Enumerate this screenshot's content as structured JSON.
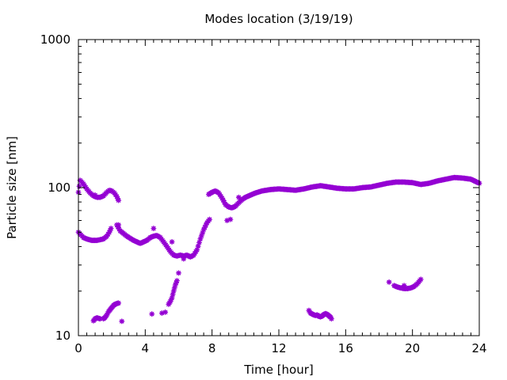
{
  "chart_data": {
    "type": "scatter",
    "title": "Modes location (3/19/19)",
    "xlabel": "Time [hour]",
    "ylabel": "Particle size [nm]",
    "xlim": [
      0,
      24
    ],
    "ylim": [
      10,
      1000
    ],
    "yscale": "log",
    "grid": false,
    "legend": "none",
    "x_ticks": [
      0,
      4,
      8,
      12,
      16,
      20,
      24
    ],
    "x_tick_labels": [
      "0",
      "4",
      "8",
      "12",
      "16",
      "20",
      "24"
    ],
    "y_ticks": [
      10,
      100,
      1000
    ],
    "y_tick_labels": [
      "10",
      "100",
      "1000"
    ],
    "marker_color": "#9400d3",
    "anchors": [
      [
        [
          0.0,
          93
        ],
        [
          0.1,
          112
        ],
        [
          0.3,
          106
        ],
        [
          0.5,
          98
        ],
        [
          0.7,
          92
        ],
        [
          0.9,
          88
        ],
        [
          1.1,
          86
        ],
        [
          1.3,
          86
        ],
        [
          1.5,
          88
        ],
        [
          1.7,
          93
        ],
        [
          1.85,
          96
        ],
        [
          2.0,
          95
        ],
        [
          2.15,
          92
        ],
        [
          2.3,
          87
        ],
        [
          2.4,
          82
        ]
      ],
      [
        [
          0.0,
          50
        ],
        [
          0.15,
          48
        ],
        [
          0.3,
          46
        ],
        [
          0.5,
          45
        ],
        [
          0.8,
          44
        ],
        [
          1.1,
          44
        ],
        [
          1.3,
          44.5
        ],
        [
          1.5,
          45
        ],
        [
          1.7,
          47
        ],
        [
          1.85,
          50
        ],
        [
          1.95,
          53
        ]
      ],
      [
        [
          2.3,
          56
        ],
        [
          2.5,
          51
        ],
        [
          2.7,
          49
        ],
        [
          2.9,
          47
        ],
        [
          3.1,
          45.5
        ],
        [
          3.3,
          44
        ],
        [
          3.5,
          43
        ],
        [
          3.7,
          42
        ],
        [
          3.9,
          43
        ],
        [
          4.1,
          44
        ],
        [
          4.3,
          46
        ],
        [
          4.5,
          47
        ],
        [
          4.7,
          47.5
        ],
        [
          4.9,
          46
        ],
        [
          5.1,
          43
        ],
        [
          5.3,
          40
        ],
        [
          5.5,
          37
        ],
        [
          5.7,
          35
        ],
        [
          5.9,
          34.5
        ],
        [
          6.1,
          35
        ],
        [
          6.3,
          34.5
        ],
        [
          6.5,
          35
        ],
        [
          6.7,
          34
        ],
        [
          6.9,
          35
        ],
        [
          7.1,
          38
        ],
        [
          7.3,
          45
        ],
        [
          7.5,
          52
        ],
        [
          7.7,
          58
        ],
        [
          7.85,
          61
        ]
      ],
      [
        [
          7.8,
          90
        ],
        [
          8.0,
          93
        ],
        [
          8.2,
          95
        ],
        [
          8.4,
          92
        ],
        [
          8.6,
          85
        ],
        [
          8.8,
          77
        ],
        [
          9.0,
          74
        ],
        [
          9.2,
          73
        ],
        [
          9.4,
          75
        ],
        [
          9.6,
          79
        ],
        [
          9.8,
          83
        ],
        [
          10.0,
          86
        ],
        [
          10.3,
          89
        ],
        [
          10.6,
          92
        ],
        [
          11.0,
          95
        ],
        [
          11.5,
          97
        ],
        [
          12.0,
          98
        ],
        [
          12.5,
          97
        ],
        [
          13.0,
          96
        ],
        [
          13.5,
          98
        ],
        [
          14.0,
          101
        ],
        [
          14.5,
          103
        ],
        [
          15.0,
          101
        ],
        [
          15.5,
          99
        ],
        [
          16.0,
          98
        ],
        [
          16.5,
          98
        ],
        [
          17.0,
          100
        ],
        [
          17.5,
          101
        ],
        [
          18.0,
          104
        ],
        [
          18.5,
          107
        ],
        [
          19.0,
          109
        ],
        [
          19.5,
          109
        ],
        [
          20.0,
          108
        ],
        [
          20.5,
          105
        ],
        [
          21.0,
          107
        ],
        [
          21.5,
          111
        ],
        [
          22.0,
          114
        ],
        [
          22.5,
          117
        ],
        [
          23.0,
          116
        ],
        [
          23.5,
          114
        ],
        [
          24.0,
          107
        ]
      ],
      [
        [
          0.9,
          12.6
        ],
        [
          1.0,
          13.0
        ],
        [
          1.1,
          13.2
        ],
        [
          1.2,
          13.1
        ],
        [
          1.3,
          13.0
        ]
      ],
      [
        [
          1.5,
          13.0
        ],
        [
          1.6,
          13.3
        ],
        [
          1.7,
          13.8
        ],
        [
          1.8,
          14.5
        ],
        [
          1.9,
          15.0
        ],
        [
          2.0,
          15.5
        ],
        [
          2.1,
          16.0
        ],
        [
          2.2,
          16.3
        ],
        [
          2.3,
          16.5
        ],
        [
          2.4,
          16.6
        ]
      ],
      [
        [
          5.4,
          16.3
        ],
        [
          5.5,
          17.0
        ],
        [
          5.6,
          18.0
        ],
        [
          5.7,
          20.0
        ],
        [
          5.8,
          22.0
        ],
        [
          5.9,
          23.5
        ]
      ],
      [
        [
          13.8,
          14.8
        ],
        [
          13.9,
          14.2
        ],
        [
          14.0,
          14.0
        ],
        [
          14.1,
          13.8
        ],
        [
          14.2,
          13.7
        ],
        [
          14.3,
          13.8
        ],
        [
          14.4,
          13.5
        ],
        [
          14.5,
          13.4
        ],
        [
          14.6,
          13.6
        ],
        [
          14.7,
          13.9
        ],
        [
          14.8,
          14.1
        ],
        [
          14.9,
          13.9
        ],
        [
          15.0,
          13.6
        ],
        [
          15.1,
          13.3
        ],
        [
          15.15,
          13.0
        ]
      ],
      [
        [
          18.9,
          21.8
        ],
        [
          19.1,
          21.3
        ],
        [
          19.3,
          21.0
        ],
        [
          19.5,
          20.8
        ],
        [
          19.7,
          20.8
        ],
        [
          19.9,
          21.0
        ],
        [
          20.1,
          21.5
        ],
        [
          20.3,
          22.5
        ],
        [
          20.5,
          24.0
        ]
      ]
    ],
    "isolated_points": [
      [
        1.0,
        89
      ],
      [
        2.4,
        56
      ],
      [
        2.6,
        12.5
      ],
      [
        4.5,
        53
      ],
      [
        4.4,
        14.0
      ],
      [
        5.0,
        14.2
      ],
      [
        5.2,
        14.4
      ],
      [
        5.6,
        43
      ],
      [
        6.0,
        26.5
      ],
      [
        6.3,
        33
      ],
      [
        8.9,
        60
      ],
      [
        9.1,
        61
      ],
      [
        9.3,
        74
      ],
      [
        9.6,
        86
      ],
      [
        18.6,
        23.0
      ],
      [
        19.5,
        21.8
      ]
    ]
  }
}
